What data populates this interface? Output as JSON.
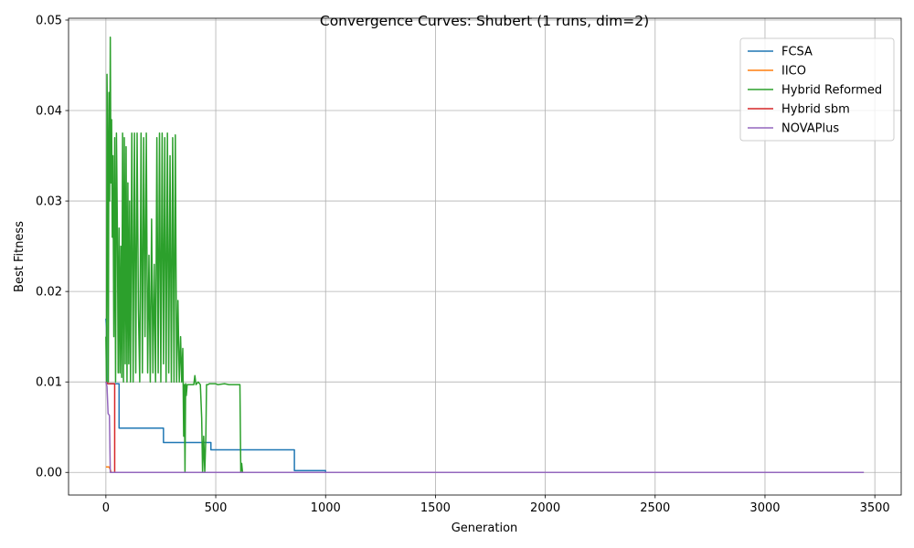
{
  "chart_data": {
    "type": "line",
    "title": "Convergence Curves: Shubert (1 runs, dim=2)",
    "xlabel": "Generation",
    "ylabel": "Best Fitness",
    "xlim": [
      -170,
      3620
    ],
    "ylim": [
      -0.0025,
      0.0502
    ],
    "xticks": [
      0,
      500,
      1000,
      1500,
      2000,
      2500,
      3000,
      3500
    ],
    "xtick_labels": [
      "0",
      "500",
      "1000",
      "1500",
      "2000",
      "2500",
      "3000",
      "3500"
    ],
    "yticks": [
      0.0,
      0.01,
      0.02,
      0.03,
      0.04,
      0.05
    ],
    "ytick_labels": [
      "0.00",
      "0.01",
      "0.02",
      "0.03",
      "0.04",
      "0.05"
    ],
    "grid": true,
    "legend_position": "upper right",
    "series": [
      {
        "name": "FCSA",
        "color": "#1f77b4",
        "step": true,
        "points": [
          [
            0,
            0.017
          ],
          [
            3,
            0.016
          ],
          [
            5,
            0.0098
          ],
          [
            60,
            0.0098
          ],
          [
            60,
            0.0049
          ],
          [
            262,
            0.0049
          ],
          [
            262,
            0.0033
          ],
          [
            478,
            0.0033
          ],
          [
            478,
            0.0025
          ],
          [
            858,
            0.0025
          ],
          [
            858,
            0.0002
          ],
          [
            1000,
            0.0002
          ],
          [
            1000,
            0.0
          ]
        ]
      },
      {
        "name": "IICO",
        "color": "#ff7f0e",
        "step": true,
        "points": [
          [
            0,
            0.0006
          ],
          [
            15,
            0.0006
          ],
          [
            20,
            0.0003
          ],
          [
            25,
            0.0
          ],
          [
            1000,
            0.0
          ]
        ]
      },
      {
        "name": "Hybrid Reformed",
        "color": "#2ca02c",
        "step": false,
        "points": [
          [
            0,
            0.015
          ],
          [
            3,
            0.01
          ],
          [
            5,
            0.044
          ],
          [
            8,
            0.036
          ],
          [
            11,
            0.01
          ],
          [
            14,
            0.042
          ],
          [
            17,
            0.03
          ],
          [
            20,
            0.0481
          ],
          [
            23,
            0.032
          ],
          [
            26,
            0.039
          ],
          [
            29,
            0.026
          ],
          [
            32,
            0.035
          ],
          [
            36,
            0.015
          ],
          [
            40,
            0.037
          ],
          [
            44,
            0.01
          ],
          [
            48,
            0.0375
          ],
          [
            52,
            0.0275
          ],
          [
            56,
            0.011
          ],
          [
            60,
            0.027
          ],
          [
            64,
            0.011
          ],
          [
            68,
            0.025
          ],
          [
            72,
            0.0105
          ],
          [
            76,
            0.0375
          ],
          [
            80,
            0.01
          ],
          [
            84,
            0.037
          ],
          [
            88,
            0.012
          ],
          [
            92,
            0.036
          ],
          [
            96,
            0.01
          ],
          [
            100,
            0.032
          ],
          [
            104,
            0.012
          ],
          [
            108,
            0.03
          ],
          [
            112,
            0.01
          ],
          [
            118,
            0.0375
          ],
          [
            124,
            0.01
          ],
          [
            130,
            0.0375
          ],
          [
            136,
            0.011
          ],
          [
            142,
            0.0375
          ],
          [
            148,
            0.018
          ],
          [
            154,
            0.01
          ],
          [
            160,
            0.0375
          ],
          [
            166,
            0.011
          ],
          [
            172,
            0.037
          ],
          [
            178,
            0.015
          ],
          [
            184,
            0.0375
          ],
          [
            190,
            0.011
          ],
          [
            196,
            0.024
          ],
          [
            202,
            0.01
          ],
          [
            208,
            0.028
          ],
          [
            214,
            0.011
          ],
          [
            220,
            0.023
          ],
          [
            226,
            0.01
          ],
          [
            232,
            0.037
          ],
          [
            238,
            0.011
          ],
          [
            244,
            0.0375
          ],
          [
            250,
            0.01
          ],
          [
            256,
            0.0375
          ],
          [
            262,
            0.012
          ],
          [
            268,
            0.037
          ],
          [
            274,
            0.01
          ],
          [
            280,
            0.0375
          ],
          [
            286,
            0.011
          ],
          [
            292,
            0.035
          ],
          [
            298,
            0.01
          ],
          [
            304,
            0.037
          ],
          [
            310,
            0.01
          ],
          [
            316,
            0.0373
          ],
          [
            322,
            0.01
          ],
          [
            328,
            0.019
          ],
          [
            334,
            0.01
          ],
          [
            340,
            0.015
          ],
          [
            345,
            0.01
          ],
          [
            350,
            0.0137
          ],
          [
            354,
            0.004
          ],
          [
            357,
            0.0097
          ],
          [
            360,
            0.0
          ],
          [
            363,
            0.0098
          ],
          [
            366,
            0.0085
          ],
          [
            370,
            0.0097
          ],
          [
            400,
            0.0097
          ],
          [
            405,
            0.0107
          ],
          [
            410,
            0.0097
          ],
          [
            420,
            0.01
          ],
          [
            430,
            0.0097
          ],
          [
            436,
            0.006
          ],
          [
            440,
            0.0
          ],
          [
            445,
            0.004
          ],
          [
            450,
            0.0
          ],
          [
            455,
            0.004
          ],
          [
            458,
            0.0097
          ],
          [
            465,
            0.0097
          ],
          [
            470,
            0.0098
          ],
          [
            500,
            0.0098
          ],
          [
            510,
            0.0097
          ],
          [
            540,
            0.0098
          ],
          [
            560,
            0.0097
          ],
          [
            610,
            0.0097
          ],
          [
            614,
            0.0
          ],
          [
            618,
            0.001
          ],
          [
            622,
            0.0
          ],
          [
            1000,
            0.0
          ]
        ]
      },
      {
        "name": "Hybrid sbm",
        "color": "#d62728",
        "step": true,
        "points": [
          [
            0,
            0.01
          ],
          [
            10,
            0.0098
          ],
          [
            40,
            0.0098
          ],
          [
            40,
            0.0
          ],
          [
            1000,
            0.0
          ]
        ]
      },
      {
        "name": "NOVAPlus",
        "color": "#9467bd",
        "step": true,
        "points": [
          [
            0,
            0.01
          ],
          [
            5,
            0.0095
          ],
          [
            10,
            0.0065
          ],
          [
            16,
            0.0063
          ],
          [
            20,
            0.0
          ],
          [
            3450,
            0.0
          ]
        ]
      }
    ]
  }
}
